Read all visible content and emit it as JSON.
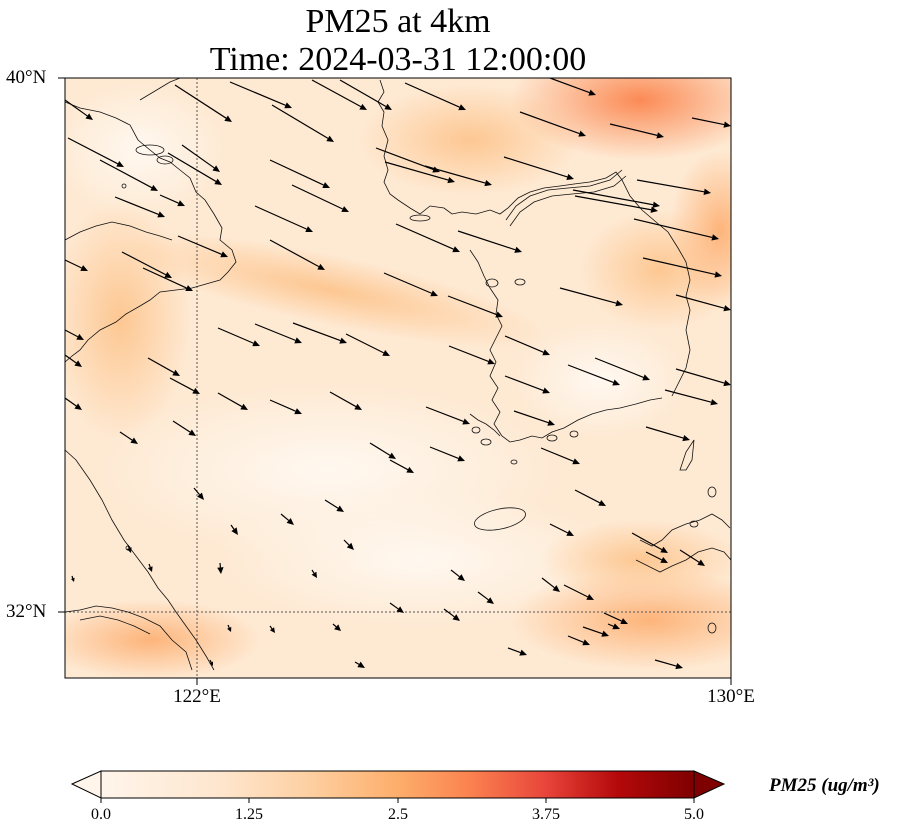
{
  "title": "PM25 at 4km",
  "subtitle": "Time: 2024-03-31 12:00:00",
  "lat_labels": [
    "40°N",
    "32°N"
  ],
  "lon_labels": [
    "122°E",
    "130°E"
  ],
  "colorbar": {
    "ticks": [
      "0.0",
      "1.25",
      "2.5",
      "3.75",
      "5.0"
    ],
    "label": "PM25 (ug/m³)",
    "colors": [
      "#fff5eb",
      "#fee6ce",
      "#fdd0a2",
      "#fdae6b",
      "#fd8d3c",
      "#f16913",
      "#d94801",
      "#a60000",
      "#7f0000"
    ]
  }
}
